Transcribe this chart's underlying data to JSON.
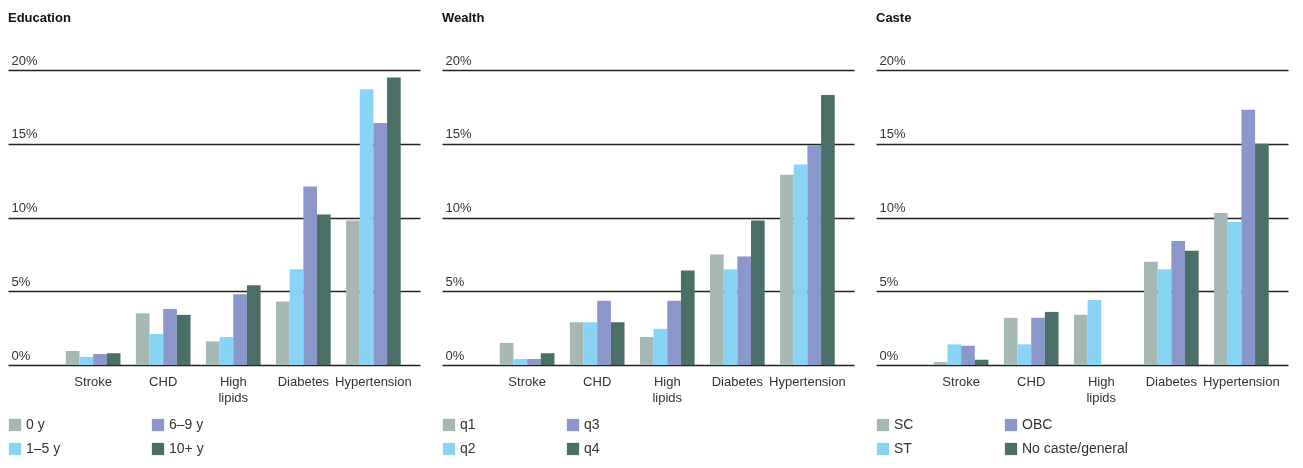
{
  "chart_data": [
    {
      "type": "bar",
      "title": "Education",
      "categories": [
        "Stroke",
        "CHD",
        "High lipids",
        "Diabetes",
        "Hypertension"
      ],
      "series": [
        {
          "name": "0 y",
          "color": "#a6b8b3",
          "values": [
            0.95,
            3.5,
            1.6,
            4.3,
            9.8
          ]
        },
        {
          "name": "1–5 y",
          "color": "#89d4f5",
          "values": [
            0.55,
            2.1,
            1.9,
            6.5,
            18.7
          ]
        },
        {
          "name": "6–9 y",
          "color": "#8b96cb",
          "values": [
            0.75,
            3.8,
            4.8,
            12.1,
            16.4
          ]
        },
        {
          "name": "10+ y",
          "color": "#4a6f66",
          "values": [
            0.8,
            3.4,
            5.4,
            10.2,
            19.5
          ]
        }
      ],
      "ylim": [
        0,
        20
      ],
      "yticks": [
        {
          "value": 0,
          "label": "0%"
        },
        {
          "value": 5,
          "label": "5%"
        },
        {
          "value": 10,
          "label": "10%"
        },
        {
          "value": 15,
          "label": "15%"
        },
        {
          "value": 20,
          "label": "20%"
        }
      ],
      "grid": "y",
      "legend": "bottom"
    },
    {
      "type": "bar",
      "title": "Wealth",
      "categories": [
        "Stroke",
        "CHD",
        "High lipids",
        "Diabetes",
        "Hypertension"
      ],
      "series": [
        {
          "name": "q1",
          "color": "#a6b8b3",
          "values": [
            1.5,
            2.9,
            1.9,
            7.5,
            12.9
          ]
        },
        {
          "name": "q2",
          "color": "#89d4f5",
          "values": [
            0.4,
            2.9,
            2.45,
            6.5,
            13.6
          ]
        },
        {
          "name": "q3",
          "color": "#8b96cb",
          "values": [
            0.4,
            4.35,
            4.35,
            7.35,
            14.9
          ]
        },
        {
          "name": "q4",
          "color": "#4a6f66",
          "values": [
            0.8,
            2.9,
            6.4,
            9.8,
            18.3
          ]
        }
      ],
      "ylim": [
        0,
        20
      ],
      "yticks": [
        {
          "value": 0,
          "label": "0%"
        },
        {
          "value": 5,
          "label": "5%"
        },
        {
          "value": 10,
          "label": "10%"
        },
        {
          "value": 15,
          "label": "15%"
        },
        {
          "value": 20,
          "label": "20%"
        }
      ],
      "grid": "y",
      "legend": "bottom"
    },
    {
      "type": "bar",
      "title": "Caste",
      "categories": [
        "Stroke",
        "CHD",
        "High lipids",
        "Diabetes",
        "Hypertension"
      ],
      "series": [
        {
          "name": "SC",
          "color": "#a6b8b3",
          "values": [
            0.2,
            3.2,
            3.4,
            7.0,
            10.3
          ]
        },
        {
          "name": "ST",
          "color": "#89d4f5",
          "values": [
            1.4,
            1.4,
            4.4,
            6.5,
            9.7
          ]
        },
        {
          "name": "OBC",
          "color": "#8b96cb",
          "values": [
            1.3,
            3.2,
            null,
            8.4,
            17.3
          ]
        },
        {
          "name": "No caste/general",
          "color": "#4a6f66",
          "values": [
            0.35,
            3.6,
            null,
            7.75,
            15.0
          ]
        }
      ],
      "ylim": [
        0,
        20
      ],
      "yticks": [
        {
          "value": 0,
          "label": "0%"
        },
        {
          "value": 5,
          "label": "5%"
        },
        {
          "value": 10,
          "label": "10%"
        },
        {
          "value": 15,
          "label": "15%"
        },
        {
          "value": 20,
          "label": "20%"
        }
      ],
      "grid": "y",
      "legend": "bottom"
    }
  ]
}
